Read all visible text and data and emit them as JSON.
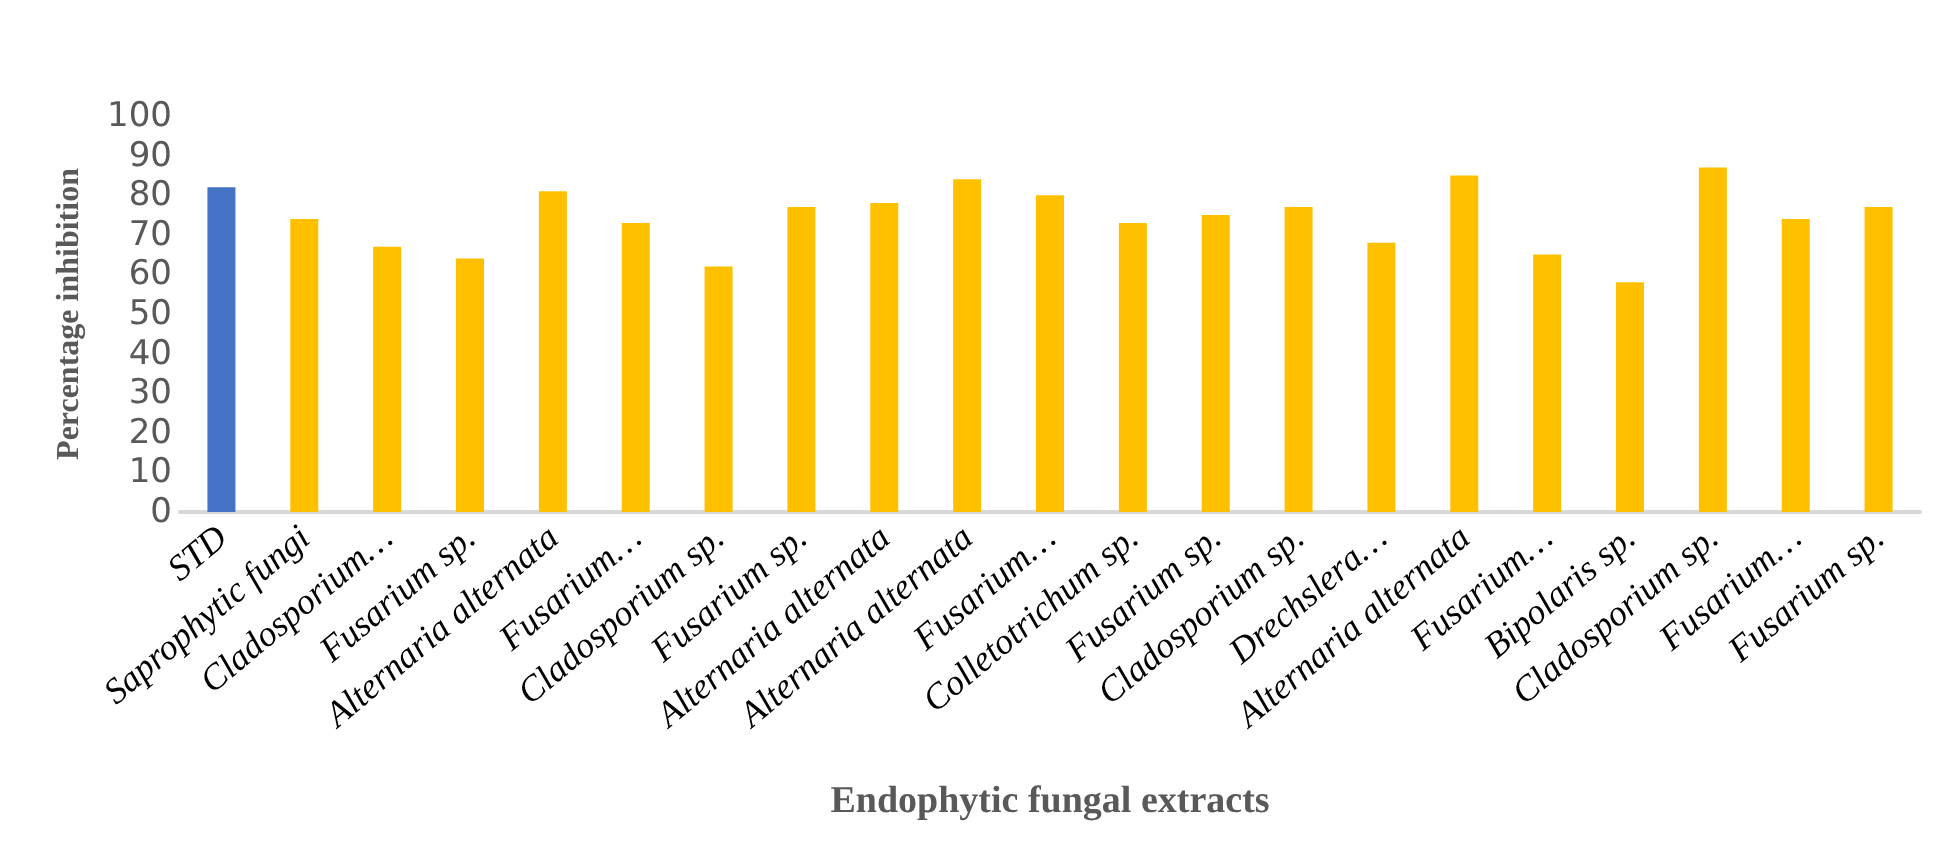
{
  "chart_data": {
    "type": "bar",
    "xlabel": "Endophytic fungal extracts",
    "ylabel": "Percentage inhibition",
    "categories": [
      "STD",
      "Saprophytic fungi",
      "Cladosporium…",
      "Fusarium sp.",
      "Alternaria alternata",
      "Fusarium…",
      "Cladosporium sp.",
      "Fusarium sp.",
      "Alternaria alternata",
      "Alternaria alternata",
      "Fusarium…",
      "Colletotrichum sp.",
      "Fusarium sp.",
      "Cladosporium sp.",
      "Drechslera…",
      "Alternaria alternata",
      "Fusarium…",
      "Bipolaris sp.",
      "Cladosporium sp.",
      "Fusarium…",
      "Fusarium sp."
    ],
    "values": [
      82,
      74,
      67,
      64,
      81,
      73,
      62,
      77,
      78,
      84,
      80,
      73,
      75,
      77,
      68,
      85,
      65,
      58,
      87,
      74,
      77
    ],
    "colors": [
      "#4472c4",
      "#ffc000",
      "#ffc000",
      "#ffc000",
      "#ffc000",
      "#ffc000",
      "#ffc000",
      "#ffc000",
      "#ffc000",
      "#ffc000",
      "#ffc000",
      "#ffc000",
      "#ffc000",
      "#ffc000",
      "#ffc000",
      "#ffc000",
      "#ffc000",
      "#ffc000",
      "#ffc000",
      "#ffc000",
      "#ffc000"
    ],
    "ylim": [
      0,
      100
    ],
    "yticks": [
      0,
      10,
      20,
      30,
      40,
      50,
      60,
      70,
      80,
      90,
      100
    ],
    "grid": false
  }
}
